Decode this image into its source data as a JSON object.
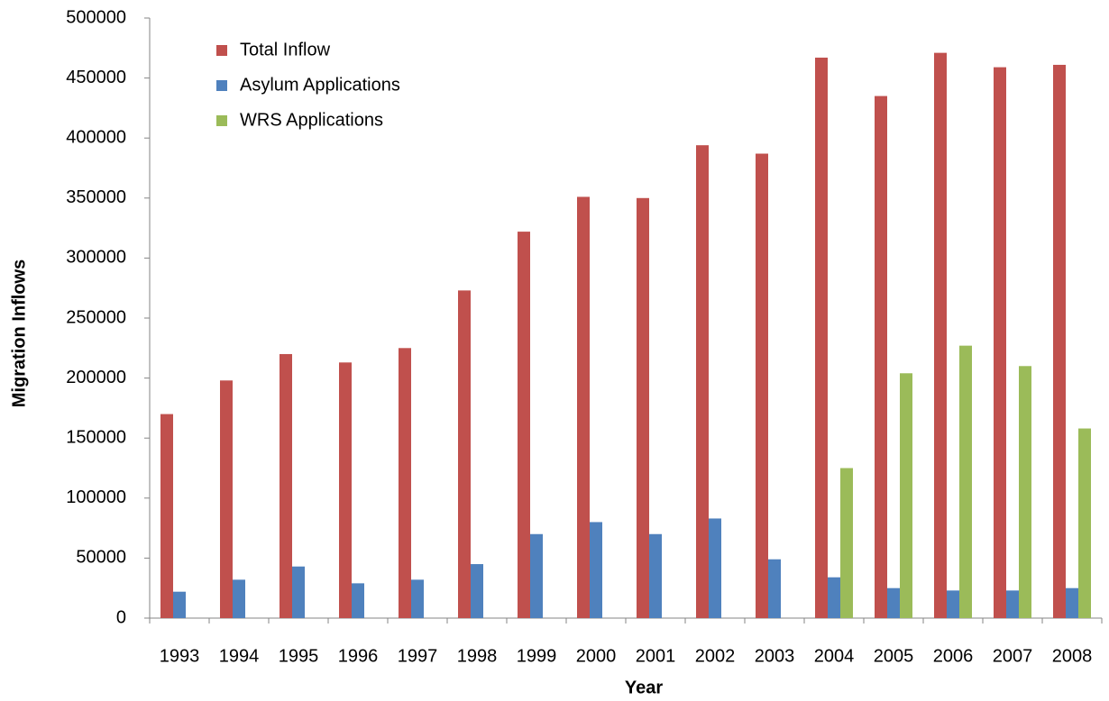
{
  "chart_data": {
    "type": "bar",
    "x_label": "Year",
    "y_label": "Migration Inflows",
    "categories": [
      "1993",
      "1994",
      "1995",
      "1996",
      "1997",
      "1998",
      "1999",
      "2000",
      "2001",
      "2002",
      "2003",
      "2004",
      "2005",
      "2006",
      "2007",
      "2008"
    ],
    "series": [
      {
        "name": "Total Inflow",
        "color": "#c0504d",
        "values": [
          170000,
          198000,
          220000,
          213000,
          225000,
          273000,
          322000,
          351000,
          350000,
          394000,
          387000,
          467000,
          435000,
          471000,
          459000,
          461000
        ]
      },
      {
        "name": "Asylum Applications",
        "color": "#4f81bd",
        "values": [
          22000,
          32000,
          43000,
          29000,
          32000,
          45000,
          70000,
          80000,
          70000,
          83000,
          49000,
          34000,
          25000,
          23000,
          23000,
          25000
        ]
      },
      {
        "name": "WRS Applications",
        "color": "#9bbb59",
        "values": [
          null,
          null,
          null,
          null,
          null,
          null,
          null,
          null,
          null,
          null,
          null,
          125000,
          204000,
          227000,
          210000,
          158000
        ]
      }
    ],
    "ylim": [
      0,
      500000
    ],
    "yticks": [
      0,
      50000,
      100000,
      150000,
      200000,
      250000,
      300000,
      350000,
      400000,
      450000,
      500000
    ],
    "legend": "top-left",
    "grid": false
  }
}
